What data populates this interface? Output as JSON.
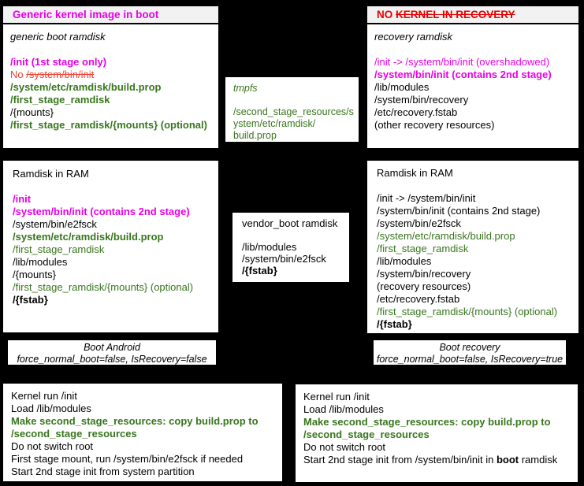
{
  "styles": {
    "default": {
      "color": "#000000"
    },
    "bold": {
      "color": "#000000",
      "bold": true
    },
    "italic": {
      "color": "#000000",
      "italic": true
    },
    "magenta": {
      "color": "#e600e6"
    },
    "magenta-bold": {
      "color": "#e600e6",
      "bold": true
    },
    "red": {
      "color": "#ea4335"
    },
    "red-strike": {
      "color": "#ea4335",
      "strike": true
    },
    "red-bold": {
      "color": "#e60000",
      "bold": true
    },
    "red-bold-strike": {
      "color": "#e60000",
      "bold": true,
      "strike": true
    },
    "green": {
      "color": "#38761d"
    },
    "green-bold": {
      "color": "#38761d",
      "bold": true
    },
    "green-italic": {
      "color": "#38761d",
      "italic": true
    }
  },
  "boxes": {
    "generic_kernel": {
      "header": [
        {
          "segments": [
            {
              "t": "Generic kernel image in boot",
              "style": "magenta-bold"
            }
          ]
        }
      ],
      "lines": [
        {
          "t": "generic boot ramdisk",
          "style": "italic"
        },
        {
          "t": "",
          "style": "default"
        },
        {
          "t": "/init (1st stage only)",
          "style": "magenta-bold"
        },
        {
          "segments": [
            {
              "t": "No ",
              "style": "red"
            },
            {
              "t": "/system/bin/init",
              "style": "red-strike"
            }
          ]
        },
        {
          "t": "/system/etc/ramdisk/build.prop",
          "style": "green-bold"
        },
        {
          "t": "/first_stage_ramdisk",
          "style": "green-bold"
        },
        {
          "t": "/{mounts}",
          "style": "default"
        },
        {
          "t": "/first_stage_ramdisk/{mounts} (optional)",
          "style": "green-bold"
        }
      ]
    },
    "no_kernel_recovery": {
      "header": [
        {
          "segments": [
            {
              "t": "NO ",
              "style": "red-bold"
            },
            {
              "t": "KERNEL IN RECOVERY",
              "style": "red-bold-strike"
            }
          ]
        }
      ],
      "lines": [
        {
          "t": "recovery ramdisk",
          "style": "italic"
        },
        {
          "t": "",
          "style": "default"
        },
        {
          "t": "/init -> /system/bin/init (overshadowed)",
          "style": "magenta"
        },
        {
          "t": "/system/bin/init (contains 2nd stage)",
          "style": "magenta-bold"
        },
        {
          "t": "/lib/modules",
          "style": "default"
        },
        {
          "t": "/system/bin/recovery",
          "style": "default"
        },
        {
          "t": "/etc/recovery.fstab",
          "style": "default"
        },
        {
          "t": "(other recovery resources)",
          "style": "default"
        }
      ]
    },
    "tmpfs": {
      "lines": [
        {
          "t": "tmpfs",
          "style": "green-italic"
        },
        {
          "t": "",
          "style": "default"
        },
        {
          "t": "/second_stage_resources/s",
          "style": "green"
        },
        {
          "t": "ystem/etc/ramdisk/",
          "style": "green"
        },
        {
          "t": "build.prop",
          "style": "green"
        }
      ]
    },
    "ramdisk_ram_boot": {
      "lines": [
        {
          "t": "Ramdisk in RAM",
          "style": "default"
        },
        {
          "t": "",
          "style": "default"
        },
        {
          "t": "/init",
          "style": "magenta-bold"
        },
        {
          "t": "/system/bin/init (contains 2nd stage)",
          "style": "magenta-bold"
        },
        {
          "t": "/system/bin/e2fsck",
          "style": "default"
        },
        {
          "t": "/system/etc/ramdisk/build.prop",
          "style": "green-bold"
        },
        {
          "t": "/first_stage_ramdisk",
          "style": "green"
        },
        {
          "t": "/lib/modules",
          "style": "default"
        },
        {
          "t": "/{mounts}",
          "style": "default"
        },
        {
          "t": "/first_stage_ramdisk/{mounts} (optional)",
          "style": "green"
        },
        {
          "t": "/{fstab}",
          "style": "bold"
        }
      ]
    },
    "vendor_boot": {
      "lines": [
        {
          "t": "vendor_boot ramdisk",
          "style": "default"
        },
        {
          "t": "",
          "style": "default"
        },
        {
          "t": "/lib/modules",
          "style": "default"
        },
        {
          "t": "/system/bin/e2fsck",
          "style": "default"
        },
        {
          "t": "/{fstab}",
          "style": "bold"
        }
      ]
    },
    "ramdisk_ram_recovery": {
      "lines": [
        {
          "t": "Ramdisk in RAM",
          "style": "default"
        },
        {
          "t": "",
          "style": "default"
        },
        {
          "t": "/init -> /system/bin/init",
          "style": "default"
        },
        {
          "t": "/system/bin/init (contains 2nd stage)",
          "style": "default"
        },
        {
          "t": "/system/bin/e2fsck",
          "style": "default"
        },
        {
          "t": "/system/etc/ramdisk/build.prop",
          "style": "green"
        },
        {
          "t": "/first_stage_ramdisk",
          "style": "green"
        },
        {
          "t": "/lib/modules",
          "style": "default"
        },
        {
          "t": "/system/bin/recovery",
          "style": "default"
        },
        {
          "t": "(recovery resources)",
          "style": "default"
        },
        {
          "t": "/etc/recovery.fstab",
          "style": "default"
        },
        {
          "t": "/first_stage_ramdisk/{mounts} (optional)",
          "style": "green"
        },
        {
          "t": "/{fstab}",
          "style": "bold"
        }
      ]
    },
    "boot_android": {
      "lines": [
        {
          "t": "Boot Android",
          "style": "italic"
        },
        {
          "t": "force_normal_boot=false, IsRecovery=false",
          "style": "italic"
        }
      ]
    },
    "boot_recovery": {
      "lines": [
        {
          "t": "Boot recovery",
          "style": "italic"
        },
        {
          "t": "force_normal_boot=false, IsRecovery=true",
          "style": "italic"
        }
      ]
    },
    "steps_boot": {
      "lines": [
        {
          "t": "Kernel run /init",
          "style": "default"
        },
        {
          "t": "Load /lib/modules",
          "style": "default"
        },
        {
          "t": "Make second_stage_resources: copy build.prop to",
          "style": "green-bold"
        },
        {
          "t": "/second_stage_resources",
          "style": "green-bold"
        },
        {
          "t": "Do not switch root",
          "style": "default"
        },
        {
          "t": "First stage mount, run /system/bin/e2fsck if needed",
          "style": "default"
        },
        {
          "t": "Start 2nd stage init from system partition",
          "style": "default"
        }
      ]
    },
    "steps_recovery": {
      "lines": [
        {
          "t": "Kernel run /init",
          "style": "default"
        },
        {
          "t": "Load /lib/modules",
          "style": "default"
        },
        {
          "t": "Make second_stage_resources: copy build.prop to",
          "style": "green-bold"
        },
        {
          "t": "/second_stage_resources",
          "style": "green-bold"
        },
        {
          "t": "Do not switch root",
          "style": "default"
        },
        {
          "segments": [
            {
              "t": "Start 2nd stage init from /system/bin/init in ",
              "style": "default"
            },
            {
              "t": "boot",
              "style": "bold"
            },
            {
              "t": " ramdisk",
              "style": "default"
            }
          ]
        }
      ]
    }
  }
}
